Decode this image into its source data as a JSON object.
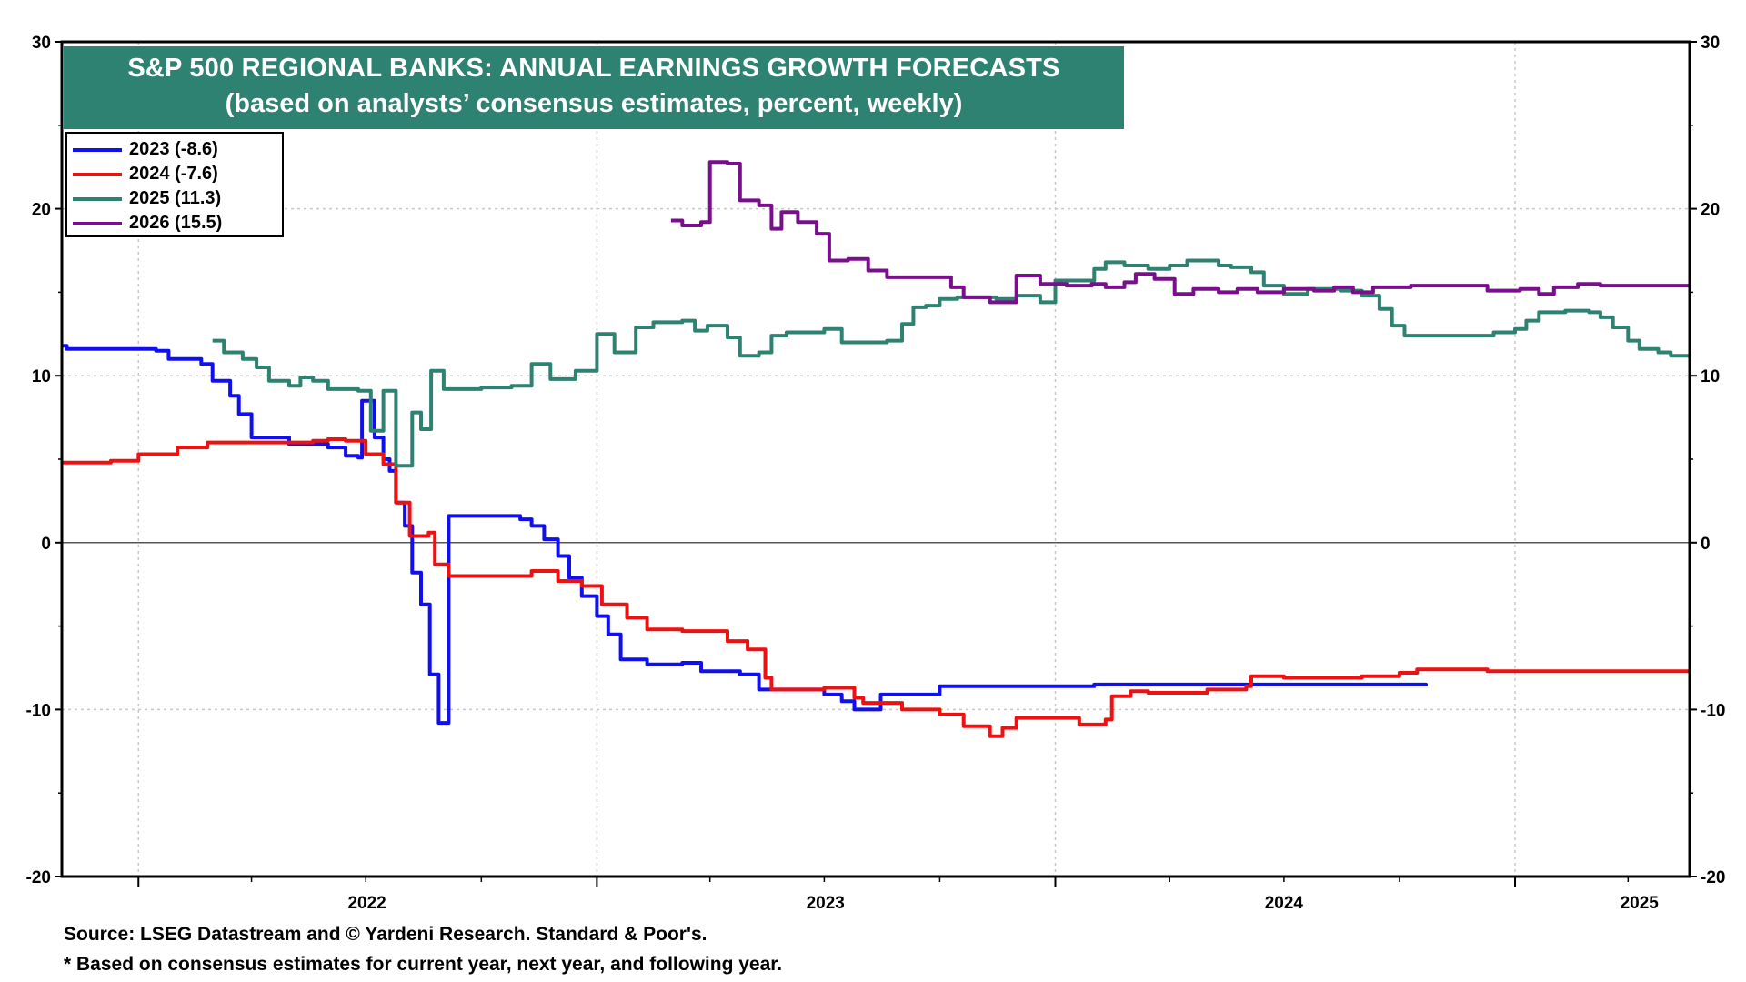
{
  "chart_data": {
    "type": "line",
    "title": "S&P 500 REGIONAL BANKS: ANNUAL EARNINGS GROWTH FORECASTS",
    "subtitle": "(based on analysts’ consensus estimates, percent, weekly)",
    "ylim": [
      -20,
      30
    ],
    "yticks": [
      -20,
      -10,
      0,
      10,
      20,
      30
    ],
    "ytick_labels": [
      "-20",
      "-10",
      "0",
      "10",
      "20",
      "30"
    ],
    "xlim": [
      "2021-11-01",
      "2025-05-20"
    ],
    "x_year_labels": [
      {
        "label": "2022",
        "date": "2022-01-01"
      },
      {
        "label": "2023",
        "date": "2023-01-01"
      },
      {
        "label": "2024",
        "date": "2024-01-01"
      },
      {
        "label": "2025",
        "date": "2025-01-01"
      }
    ],
    "grid": true,
    "zero_line": true,
    "legend_position": "top-left",
    "series": [
      {
        "name": "2023 (-8.6)",
        "color": "#1010ee",
        "points": [
          [
            "2021-11-01",
            11.8
          ],
          [
            "2021-11-05",
            11.6
          ],
          [
            "2022-01-15",
            11.5
          ],
          [
            "2022-01-25",
            11.0
          ],
          [
            "2022-02-20",
            10.7
          ],
          [
            "2022-03-01",
            9.7
          ],
          [
            "2022-03-15",
            8.8
          ],
          [
            "2022-03-22",
            7.7
          ],
          [
            "2022-04-01",
            6.3
          ],
          [
            "2022-05-01",
            5.9
          ],
          [
            "2022-06-01",
            5.7
          ],
          [
            "2022-06-15",
            5.2
          ],
          [
            "2022-06-25",
            5.1
          ],
          [
            "2022-06-28",
            8.5
          ],
          [
            "2022-07-06",
            8.5
          ],
          [
            "2022-07-08",
            6.3
          ],
          [
            "2022-07-15",
            5.0
          ],
          [
            "2022-07-20",
            4.3
          ],
          [
            "2022-07-25",
            2.4
          ],
          [
            "2022-08-01",
            1.0
          ],
          [
            "2022-08-07",
            -1.8
          ],
          [
            "2022-08-14",
            -3.7
          ],
          [
            "2022-08-21",
            -7.9
          ],
          [
            "2022-08-28",
            -10.8
          ],
          [
            "2022-09-03",
            -10.8
          ],
          [
            "2022-09-05",
            1.6
          ],
          [
            "2022-10-01",
            1.6
          ],
          [
            "2022-11-01",
            1.4
          ],
          [
            "2022-11-10",
            1.0
          ],
          [
            "2022-11-20",
            0.2
          ],
          [
            "2022-12-01",
            -0.8
          ],
          [
            "2022-12-10",
            -2.1
          ],
          [
            "2022-12-20",
            -3.2
          ],
          [
            "2023-01-01",
            -4.4
          ],
          [
            "2023-01-10",
            -5.5
          ],
          [
            "2023-01-20",
            -7.0
          ],
          [
            "2023-02-10",
            -7.3
          ],
          [
            "2023-03-10",
            -7.2
          ],
          [
            "2023-03-25",
            -7.7
          ],
          [
            "2023-04-25",
            -7.9
          ],
          [
            "2023-05-10",
            -8.8
          ],
          [
            "2023-06-01",
            -8.8
          ],
          [
            "2023-07-01",
            -9.1
          ],
          [
            "2023-07-15",
            -9.5
          ],
          [
            "2023-07-25",
            -10.0
          ],
          [
            "2023-08-15",
            -9.1
          ],
          [
            "2023-10-01",
            -8.6
          ],
          [
            "2023-12-15",
            -8.6
          ],
          [
            "2024-02-01",
            -8.5
          ],
          [
            "2024-10-22",
            -8.6
          ]
        ]
      },
      {
        "name": "2024 (-7.6)",
        "color": "#ee1111",
        "points": [
          [
            "2021-11-01",
            4.8
          ],
          [
            "2021-12-10",
            4.9
          ],
          [
            "2022-01-01",
            5.3
          ],
          [
            "2022-02-01",
            5.7
          ],
          [
            "2022-02-25",
            6.0
          ],
          [
            "2022-05-20",
            6.1
          ],
          [
            "2022-06-01",
            6.2
          ],
          [
            "2022-06-15",
            6.1
          ],
          [
            "2022-07-01",
            5.3
          ],
          [
            "2022-07-15",
            4.7
          ],
          [
            "2022-07-25",
            2.4
          ],
          [
            "2022-08-05",
            0.4
          ],
          [
            "2022-08-20",
            0.6
          ],
          [
            "2022-08-25",
            -1.3
          ],
          [
            "2022-09-05",
            -2.0
          ],
          [
            "2022-10-20",
            -2.0
          ],
          [
            "2022-11-10",
            -1.7
          ],
          [
            "2022-12-01",
            -2.3
          ],
          [
            "2022-12-20",
            -2.6
          ],
          [
            "2023-01-05",
            -3.7
          ],
          [
            "2023-01-25",
            -4.5
          ],
          [
            "2023-02-10",
            -5.2
          ],
          [
            "2023-03-10",
            -5.3
          ],
          [
            "2023-04-01",
            -5.3
          ],
          [
            "2023-04-15",
            -5.9
          ],
          [
            "2023-05-01",
            -6.4
          ],
          [
            "2023-05-15",
            -8.1
          ],
          [
            "2023-05-20",
            -8.8
          ],
          [
            "2023-06-15",
            -8.8
          ],
          [
            "2023-07-01",
            -8.7
          ],
          [
            "2023-07-25",
            -9.3
          ],
          [
            "2023-08-01",
            -9.6
          ],
          [
            "2023-09-01",
            -10.0
          ],
          [
            "2023-10-01",
            -10.3
          ],
          [
            "2023-10-20",
            -11.0
          ],
          [
            "2023-11-10",
            -11.6
          ],
          [
            "2023-11-20",
            -11.1
          ],
          [
            "2023-12-01",
            -10.5
          ],
          [
            "2024-01-01",
            -10.5
          ],
          [
            "2024-01-20",
            -10.9
          ],
          [
            "2024-02-10",
            -10.6
          ],
          [
            "2024-02-15",
            -9.2
          ],
          [
            "2024-03-01",
            -8.9
          ],
          [
            "2024-03-15",
            -9.0
          ],
          [
            "2024-04-15",
            -9.0
          ],
          [
            "2024-05-01",
            -8.8
          ],
          [
            "2024-06-01",
            -8.6
          ],
          [
            "2024-06-05",
            -8.0
          ],
          [
            "2024-07-01",
            -8.1
          ],
          [
            "2024-09-01",
            -8.0
          ],
          [
            "2024-10-01",
            -7.8
          ],
          [
            "2024-10-15",
            -7.6
          ],
          [
            "2024-12-10",
            -7.7
          ],
          [
            "2025-05-20",
            -7.6
          ]
        ]
      },
      {
        "name": "2025 (11.3)",
        "color": "#2e8272",
        "points": [
          [
            "2022-03-01",
            12.1
          ],
          [
            "2022-03-10",
            11.4
          ],
          [
            "2022-03-25",
            11.0
          ],
          [
            "2022-04-05",
            10.5
          ],
          [
            "2022-04-15",
            9.7
          ],
          [
            "2022-05-01",
            9.4
          ],
          [
            "2022-05-10",
            9.9
          ],
          [
            "2022-05-20",
            9.7
          ],
          [
            "2022-06-01",
            9.2
          ],
          [
            "2022-06-25",
            9.1
          ],
          [
            "2022-07-05",
            6.7
          ],
          [
            "2022-07-15",
            9.1
          ],
          [
            "2022-07-25",
            4.6
          ],
          [
            "2022-08-07",
            7.8
          ],
          [
            "2022-08-14",
            6.8
          ],
          [
            "2022-08-22",
            10.3
          ],
          [
            "2022-09-01",
            9.2
          ],
          [
            "2022-10-01",
            9.3
          ],
          [
            "2022-10-25",
            9.4
          ],
          [
            "2022-11-10",
            10.7
          ],
          [
            "2022-11-25",
            9.8
          ],
          [
            "2022-12-15",
            10.3
          ],
          [
            "2023-01-01",
            12.5
          ],
          [
            "2023-01-15",
            11.4
          ],
          [
            "2023-02-01",
            12.9
          ],
          [
            "2023-02-15",
            13.2
          ],
          [
            "2023-03-10",
            13.3
          ],
          [
            "2023-03-20",
            12.7
          ],
          [
            "2023-03-30",
            13.0
          ],
          [
            "2023-04-15",
            12.3
          ],
          [
            "2023-04-25",
            11.2
          ],
          [
            "2023-05-10",
            11.4
          ],
          [
            "2023-05-20",
            12.4
          ],
          [
            "2023-06-01",
            12.6
          ],
          [
            "2023-07-01",
            12.8
          ],
          [
            "2023-07-15",
            12.0
          ],
          [
            "2023-08-01",
            12.0
          ],
          [
            "2023-08-20",
            12.1
          ],
          [
            "2023-09-01",
            13.1
          ],
          [
            "2023-09-10",
            14.1
          ],
          [
            "2023-09-20",
            14.2
          ],
          [
            "2023-10-01",
            14.6
          ],
          [
            "2023-10-15",
            14.7
          ],
          [
            "2023-11-15",
            14.6
          ],
          [
            "2023-12-01",
            14.8
          ],
          [
            "2023-12-20",
            14.4
          ],
          [
            "2024-01-01",
            15.7
          ],
          [
            "2024-02-01",
            16.4
          ],
          [
            "2024-02-10",
            16.8
          ],
          [
            "2024-02-25",
            16.6
          ],
          [
            "2024-03-15",
            16.4
          ],
          [
            "2024-04-01",
            16.6
          ],
          [
            "2024-04-15",
            16.9
          ],
          [
            "2024-05-10",
            16.6
          ],
          [
            "2024-05-20",
            16.5
          ],
          [
            "2024-06-05",
            16.2
          ],
          [
            "2024-06-15",
            15.4
          ],
          [
            "2024-07-01",
            14.9
          ],
          [
            "2024-07-20",
            15.2
          ],
          [
            "2024-08-15",
            15.1
          ],
          [
            "2024-09-01",
            14.8
          ],
          [
            "2024-09-15",
            14.0
          ],
          [
            "2024-09-25",
            13.0
          ],
          [
            "2024-10-05",
            12.4
          ],
          [
            "2024-11-15",
            12.4
          ],
          [
            "2024-12-15",
            12.6
          ],
          [
            "2025-01-01",
            12.8
          ],
          [
            "2025-01-10",
            13.3
          ],
          [
            "2025-01-20",
            13.8
          ],
          [
            "2025-02-10",
            13.9
          ],
          [
            "2025-03-01",
            13.8
          ],
          [
            "2025-03-10",
            13.5
          ],
          [
            "2025-03-20",
            12.9
          ],
          [
            "2025-04-01",
            12.1
          ],
          [
            "2025-04-10",
            11.6
          ],
          [
            "2025-04-25",
            11.4
          ],
          [
            "2025-05-05",
            11.2
          ],
          [
            "2025-05-20",
            11.3
          ]
        ]
      },
      {
        "name": "2026 (15.5)",
        "color": "#7a0f8c",
        "points": [
          [
            "2023-03-01",
            19.3
          ],
          [
            "2023-03-10",
            19.0
          ],
          [
            "2023-03-25",
            19.2
          ],
          [
            "2023-04-01",
            22.8
          ],
          [
            "2023-04-15",
            22.7
          ],
          [
            "2023-04-25",
            20.5
          ],
          [
            "2023-05-10",
            20.2
          ],
          [
            "2023-05-20",
            18.8
          ],
          [
            "2023-05-28",
            19.8
          ],
          [
            "2023-06-10",
            19.2
          ],
          [
            "2023-06-25",
            18.5
          ],
          [
            "2023-07-05",
            16.9
          ],
          [
            "2023-07-20",
            17.0
          ],
          [
            "2023-08-05",
            16.3
          ],
          [
            "2023-08-20",
            15.9
          ],
          [
            "2023-09-20",
            15.9
          ],
          [
            "2023-10-10",
            15.3
          ],
          [
            "2023-10-20",
            14.7
          ],
          [
            "2023-11-10",
            14.4
          ],
          [
            "2023-12-01",
            16.0
          ],
          [
            "2023-12-20",
            15.5
          ],
          [
            "2024-01-10",
            15.4
          ],
          [
            "2024-01-30",
            15.5
          ],
          [
            "2024-02-10",
            15.3
          ],
          [
            "2024-02-25",
            15.6
          ],
          [
            "2024-03-05",
            16.1
          ],
          [
            "2024-03-20",
            15.8
          ],
          [
            "2024-04-05",
            14.9
          ],
          [
            "2024-04-20",
            15.2
          ],
          [
            "2024-05-10",
            15.0
          ],
          [
            "2024-05-25",
            15.2
          ],
          [
            "2024-06-10",
            15.0
          ],
          [
            "2024-07-01",
            15.2
          ],
          [
            "2024-07-25",
            15.1
          ],
          [
            "2024-08-10",
            15.3
          ],
          [
            "2024-08-25",
            15.0
          ],
          [
            "2024-09-10",
            15.3
          ],
          [
            "2024-10-10",
            15.4
          ],
          [
            "2024-11-10",
            15.4
          ],
          [
            "2024-12-10",
            15.1
          ],
          [
            "2025-01-05",
            15.2
          ],
          [
            "2025-01-20",
            14.9
          ],
          [
            "2025-02-01",
            15.3
          ],
          [
            "2025-02-20",
            15.5
          ],
          [
            "2025-03-10",
            15.4
          ],
          [
            "2025-04-10",
            15.4
          ],
          [
            "2025-05-20",
            15.5
          ]
        ]
      }
    ]
  },
  "source": "Source: LSEG Datastream and © Yardeni Research. Standard & Poor's.",
  "note": "* Based on consensus estimates for current year, next year, and following year."
}
